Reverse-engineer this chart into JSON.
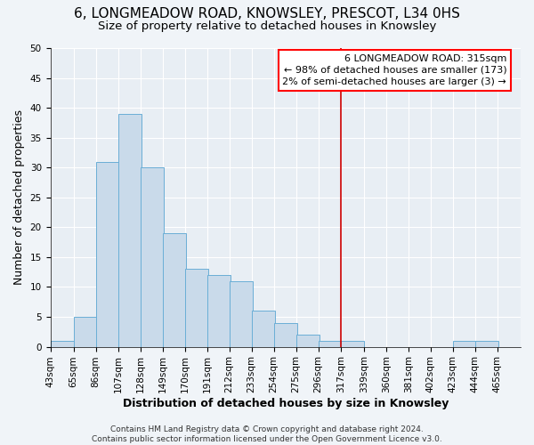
{
  "title": "6, LONGMEADOW ROAD, KNOWSLEY, PRESCOT, L34 0HS",
  "subtitle": "Size of property relative to detached houses in Knowsley",
  "xlabel": "Distribution of detached houses by size in Knowsley",
  "ylabel": "Number of detached properties",
  "footer_line1": "Contains HM Land Registry data © Crown copyright and database right 2024.",
  "footer_line2": "Contains public sector information licensed under the Open Government Licence v3.0.",
  "bin_labels": [
    "43sqm",
    "65sqm",
    "86sqm",
    "107sqm",
    "128sqm",
    "149sqm",
    "170sqm",
    "191sqm",
    "212sqm",
    "233sqm",
    "254sqm",
    "275sqm",
    "296sqm",
    "317sqm",
    "339sqm",
    "360sqm",
    "381sqm",
    "402sqm",
    "423sqm",
    "444sqm",
    "465sqm"
  ],
  "bin_left_edges": [
    43,
    65,
    86,
    107,
    128,
    149,
    170,
    191,
    212,
    233,
    254,
    275,
    296,
    317,
    339,
    360,
    381,
    402,
    423,
    444,
    465
  ],
  "bin_width": 22,
  "bar_heights": [
    1,
    5,
    31,
    39,
    30,
    19,
    13,
    12,
    11,
    6,
    4,
    2,
    1,
    1,
    0,
    0,
    0,
    0,
    1,
    1,
    0
  ],
  "bar_color": "#c9daea",
  "bar_edge_color": "#6aaed6",
  "ylim": [
    0,
    50
  ],
  "yticks": [
    0,
    5,
    10,
    15,
    20,
    25,
    30,
    35,
    40,
    45,
    50
  ],
  "vline_x": 317,
  "vline_color": "#cc0000",
  "annotation_title": "6 LONGMEADOW ROAD: 315sqm",
  "annotation_line1": "← 98% of detached houses are smaller (173)",
  "annotation_line2": "2% of semi-detached houses are larger (3) →",
  "background_color": "#f0f4f8",
  "plot_bg_color": "#e8eef4",
  "grid_color": "#ffffff",
  "title_fontsize": 11,
  "subtitle_fontsize": 9.5,
  "axis_label_fontsize": 9,
  "tick_fontsize": 7.5,
  "footer_fontsize": 6.5,
  "annotation_fontsize": 8
}
